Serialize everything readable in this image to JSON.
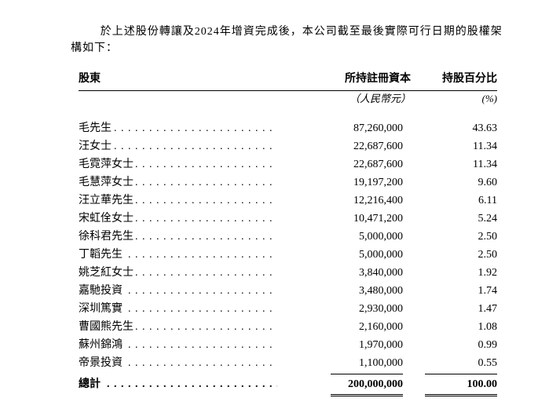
{
  "intro": "於上述股份轉讓及2024年增資完成後，本公司截至最後實際可行日期的股權架構如下：",
  "headers": {
    "shareholder": "股東",
    "capital": "所持註冊資本",
    "percent": "持股百分比",
    "capital_unit": "（人民幣元）",
    "percent_unit": "(%)"
  },
  "rows": [
    {
      "name": "毛先生",
      "capital": "87,260,000",
      "percent": "43.63"
    },
    {
      "name": "汪女士",
      "capital": "22,687,600",
      "percent": "11.34"
    },
    {
      "name": "毛霓萍女士",
      "capital": "22,687,600",
      "percent": "11.34"
    },
    {
      "name": "毛慧萍女士",
      "capital": "19,197,200",
      "percent": "9.60"
    },
    {
      "name": "汪立華先生",
      "capital": "12,216,400",
      "percent": "6.11"
    },
    {
      "name": "宋虹佺女士",
      "capital": "10,471,200",
      "percent": "5.24"
    },
    {
      "name": "徐科君先生",
      "capital": "5,000,000",
      "percent": "2.50"
    },
    {
      "name": "丁韜先生",
      "capital": "5,000,000",
      "percent": "2.50"
    },
    {
      "name": "姚芝紅女士",
      "capital": "3,840,000",
      "percent": "1.92"
    },
    {
      "name": "嘉馳投資",
      "capital": "3,480,000",
      "percent": "1.74"
    },
    {
      "name": "深圳篤實",
      "capital": "2,930,000",
      "percent": "1.47"
    },
    {
      "name": "曹國熊先生",
      "capital": "2,160,000",
      "percent": "1.08"
    },
    {
      "name": "蘇州錦鴻",
      "capital": "1,970,000",
      "percent": "0.99"
    },
    {
      "name": "帝景投資",
      "capital": "1,100,000",
      "percent": "0.55"
    }
  ],
  "totals": {
    "label": "總計",
    "capital": "200,000,000",
    "percent": "100.00"
  }
}
